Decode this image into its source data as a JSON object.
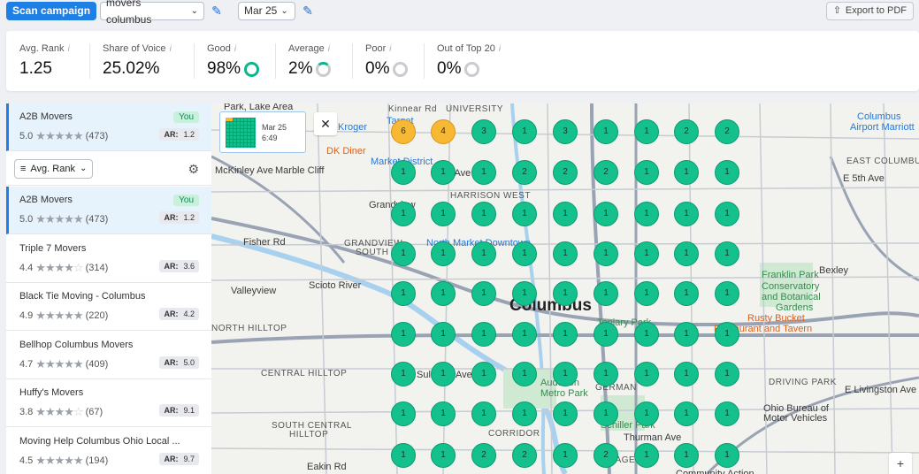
{
  "toolbar": {
    "scan_label": "Scan campaign",
    "keyword": "movers columbus",
    "date": "Mar 25",
    "export_label": "Export to PDF"
  },
  "stats": [
    {
      "label": "Avg. Rank",
      "value": "1.25",
      "ring": "none"
    },
    {
      "label": "Share of Voice",
      "value": "25.02%",
      "ring": "none"
    },
    {
      "label": "Good",
      "value": "98%",
      "ring": "green"
    },
    {
      "label": "Average",
      "value": "2%",
      "ring": "partial"
    },
    {
      "label": "Poor",
      "value": "0%",
      "ring": "grey"
    },
    {
      "label": "Out of Top 20",
      "value": "0%",
      "ring": "grey"
    }
  ],
  "pinned": {
    "name": "A2B Movers",
    "rating": "5.0",
    "reviews": "(473)",
    "stars": 5,
    "badge": "You",
    "ar_label": "AR:",
    "ar": "1.2"
  },
  "sort": {
    "label": "Avg. Rank"
  },
  "competitors": [
    {
      "name": "A2B Movers",
      "rating": "5.0",
      "reviews": "(473)",
      "stars": 5,
      "badge": "You",
      "ar_label": "AR:",
      "ar": "1.2"
    },
    {
      "name": "Triple 7 Movers",
      "rating": "4.4",
      "reviews": "(314)",
      "stars": 4,
      "ar_label": "AR:",
      "ar": "3.6"
    },
    {
      "name": "Black Tie Moving - Columbus",
      "rating": "4.9",
      "reviews": "(220)",
      "stars": 5,
      "ar_label": "AR:",
      "ar": "4.2"
    },
    {
      "name": "Bellhop Columbus Movers",
      "rating": "4.7",
      "reviews": "(409)",
      "stars": 5,
      "ar_label": "AR:",
      "ar": "5.0"
    },
    {
      "name": "Huffy's Movers",
      "rating": "3.8",
      "reviews": "(67)",
      "stars": 4,
      "ar_label": "AR:",
      "ar": "9.1"
    },
    {
      "name": "Moving Help Columbus Ohio Local ...",
      "rating": "4.5",
      "reviews": "(194)",
      "stars": 5,
      "ar_label": "AR:",
      "ar": "9.7"
    }
  ],
  "thumbnail": {
    "date": "Mar 25",
    "time": "6:49"
  },
  "map": {
    "city_label": "Columbus",
    "labels": [
      {
        "text": "Park, Lake Area",
        "cls": ""
      },
      {
        "text": "Kinnear Rd",
        "cls": "small"
      },
      {
        "text": "UNIVERSITY",
        "cls": "small"
      },
      {
        "text": "Target",
        "cls": "blue"
      },
      {
        "text": "Kroger",
        "cls": "blue"
      },
      {
        "text": "DK Diner",
        "cls": "orange"
      },
      {
        "text": "Marble Cliff",
        "cls": ""
      },
      {
        "text": "Market District",
        "cls": "blue"
      },
      {
        "text": "King Ave",
        "cls": ""
      },
      {
        "text": "HARRISON WEST",
        "cls": "small"
      },
      {
        "text": "Grandview",
        "cls": ""
      },
      {
        "text": "GRANDVIEW",
        "cls": "small"
      },
      {
        "text": "SOUTH",
        "cls": "small"
      },
      {
        "text": "North Market Downtown",
        "cls": "blue"
      },
      {
        "text": "Fisher Rd",
        "cls": ""
      },
      {
        "text": "Valleyview",
        "cls": ""
      },
      {
        "text": "NORTH HILLTOP",
        "cls": "small"
      },
      {
        "text": "CENTRAL HILLTOP",
        "cls": "small"
      },
      {
        "text": "SOUTH CENTRAL",
        "cls": "small"
      },
      {
        "text": "HILLTOP",
        "cls": "small"
      },
      {
        "text": "Topiary Park",
        "cls": "green"
      },
      {
        "text": "Franklin Park",
        "cls": "green"
      },
      {
        "text": "Conservatory",
        "cls": "green"
      },
      {
        "text": "and Botanical",
        "cls": "green"
      },
      {
        "text": "Gardens",
        "cls": "green"
      },
      {
        "text": "Rusty Bucket",
        "cls": "orange"
      },
      {
        "text": "Restaurant and Tavern",
        "cls": "orange"
      },
      {
        "text": "Bexley",
        "cls": ""
      },
      {
        "text": "EAST COLUMBUS",
        "cls": "small"
      },
      {
        "text": "E 5th Ave",
        "cls": ""
      },
      {
        "text": "Columbus",
        "cls": "blue"
      },
      {
        "text": "Airport Marriott",
        "cls": "blue"
      },
      {
        "text": "DRIVING PARK",
        "cls": "small"
      },
      {
        "text": "E Livingston Ave",
        "cls": ""
      },
      {
        "text": "Ohio Bureau of",
        "cls": ""
      },
      {
        "text": "Motor Vehicles",
        "cls": ""
      },
      {
        "text": "Scioto River",
        "cls": ""
      },
      {
        "text": "McKinley Ave",
        "cls": ""
      },
      {
        "text": "Sullivant Ave",
        "cls": ""
      },
      {
        "text": "Thurman Ave",
        "cls": ""
      },
      {
        "text": "Eakin Rd",
        "cls": ""
      },
      {
        "text": "Audubon",
        "cls": "green"
      },
      {
        "text": "Metro Park",
        "cls": "green"
      },
      {
        "text": "Schiller Park",
        "cls": "green"
      },
      {
        "text": "GERMAN",
        "cls": "small"
      },
      {
        "text": "VILLAGE",
        "cls": "small"
      },
      {
        "text": "CORRIDOR",
        "cls": "small"
      },
      {
        "text": "Community Action",
        "cls": ""
      }
    ],
    "grid": [
      [
        "6",
        "4",
        "3",
        "1",
        "3",
        "1",
        "1",
        "2",
        "2"
      ],
      [
        "1",
        "1",
        "1",
        "2",
        "2",
        "2",
        "1",
        "1",
        "1"
      ],
      [
        "1",
        "1",
        "1",
        "1",
        "1",
        "1",
        "1",
        "1",
        "1"
      ],
      [
        "1",
        "1",
        "1",
        "1",
        "1",
        "1",
        "1",
        "1",
        "1"
      ],
      [
        "1",
        "1",
        "1",
        "1",
        "1",
        "1",
        "1",
        "1",
        "1"
      ],
      [
        "1",
        "1",
        "1",
        "1",
        "1",
        "1",
        "1",
        "1",
        "1"
      ],
      [
        "1",
        "1",
        "1",
        "1",
        "1",
        "1",
        "1",
        "1",
        "1"
      ],
      [
        "1",
        "1",
        "1",
        "1",
        "1",
        "1",
        "1",
        "1",
        "1"
      ],
      [
        "1",
        "1",
        "2",
        "2",
        "1",
        "2",
        "1",
        "1",
        "1"
      ]
    ],
    "highlight_values": [
      "6",
      "4"
    ]
  },
  "colors": {
    "accent": "#1e7fe5",
    "good": "#14c08c",
    "average": "#f7b834"
  }
}
